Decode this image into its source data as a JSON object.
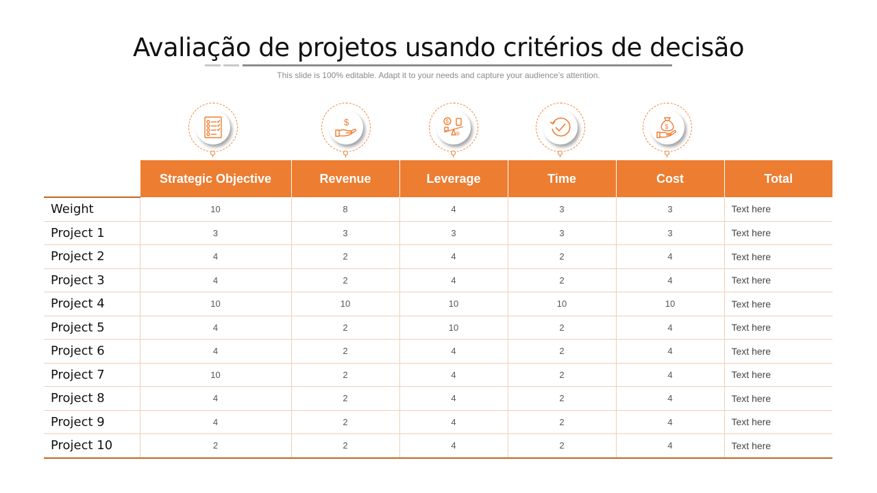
{
  "title": "Avaliação de projetos usando critérios de decisão",
  "subtitle": "This slide is 100% editable. Adapt it to your needs and capture your audience’s attention.",
  "colors": {
    "accent": "#ed7d31",
    "border": "#f3cdb3"
  },
  "icons": [
    "checklist-icon",
    "dollar-hand-icon",
    "leverage-icon",
    "clock-check-icon",
    "money-bag-hand-icon"
  ],
  "table": {
    "headers": [
      "Strategic Objective",
      "Revenue",
      "Leverage",
      "Time",
      "Cost",
      "Total"
    ],
    "rows": [
      {
        "label": "Weight",
        "values": [
          "10",
          "8",
          "4",
          "3",
          "3"
        ],
        "total": "Text here"
      },
      {
        "label": "Project 1",
        "values": [
          "3",
          "3",
          "3",
          "3",
          "3"
        ],
        "total": "Text here"
      },
      {
        "label": "Project 2",
        "values": [
          "4",
          "2",
          "4",
          "2",
          "4"
        ],
        "total": "Text here"
      },
      {
        "label": "Project 3",
        "values": [
          "4",
          "2",
          "4",
          "2",
          "4"
        ],
        "total": "Text here"
      },
      {
        "label": "Project 4",
        "values": [
          "10",
          "10",
          "10",
          "10",
          "10"
        ],
        "total": "Text here"
      },
      {
        "label": "Project 5",
        "values": [
          "4",
          "2",
          "10",
          "2",
          "4"
        ],
        "total": "Text here"
      },
      {
        "label": "Project 6",
        "values": [
          "4",
          "2",
          "4",
          "2",
          "4"
        ],
        "total": "Text here"
      },
      {
        "label": "Project 7",
        "values": [
          "10",
          "2",
          "4",
          "2",
          "4"
        ],
        "total": "Text here"
      },
      {
        "label": "Project 8",
        "values": [
          "4",
          "2",
          "4",
          "2",
          "4"
        ],
        "total": "Text here"
      },
      {
        "label": "Project 9",
        "values": [
          "4",
          "2",
          "4",
          "2",
          "4"
        ],
        "total": "Text here"
      },
      {
        "label": "Project 10",
        "values": [
          "2",
          "2",
          "4",
          "2",
          "4"
        ],
        "total": "Text here"
      }
    ]
  }
}
